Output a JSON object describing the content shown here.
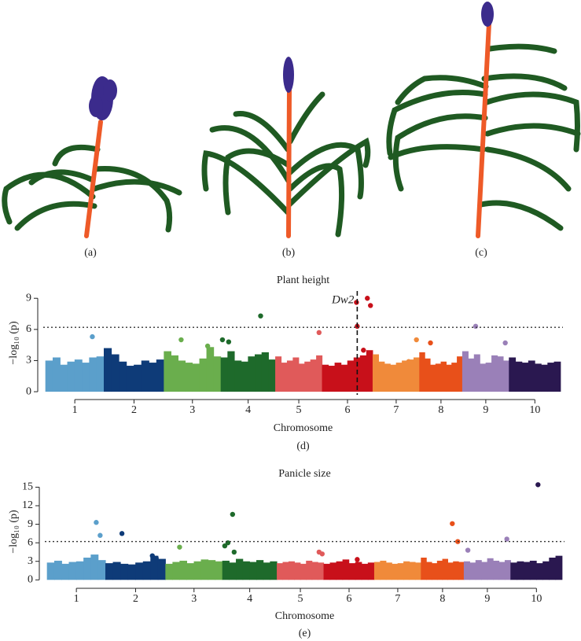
{
  "panels": [
    {
      "label": "(a)"
    },
    {
      "label": "(b)"
    },
    {
      "label": "(c)"
    }
  ],
  "chart_data": [
    {
      "type": "manhattan",
      "title": "Plant height",
      "xlabel": "Chromosome",
      "ylabel": "−log₁₀ (p)",
      "caption": "(d)",
      "xlim": [
        -3,
        664
      ],
      "ylim": [
        -0.3,
        9.7
      ],
      "yticks": [
        0,
        3,
        6,
        9
      ],
      "xticks": [
        {
          "value": 37.5,
          "label": "1"
        },
        {
          "value": 113.5,
          "label": "2"
        },
        {
          "value": 188.5,
          "label": "3"
        },
        {
          "value": 260,
          "label": "4"
        },
        {
          "value": 325,
          "label": "5"
        },
        {
          "value": 387.5,
          "label": "6"
        },
        {
          "value": 450,
          "label": "7"
        },
        {
          "value": 507.5,
          "label": "8"
        },
        {
          "value": 565,
          "label": "9"
        },
        {
          "value": 628,
          "label": "10"
        }
      ],
      "threshold": 6.2,
      "annotation": {
        "text": "Dw2",
        "x": 400
      },
      "series": [
        {
          "color": "#5b9fcb",
          "x": [
            4.7,
            14.1,
            23.4,
            32.8,
            42.2,
            51.6,
            60.9,
            70.3
          ],
          "values": [
            3.0,
            3.3,
            2.6,
            2.9,
            3.1,
            2.8,
            3.3,
            3.4
          ],
          "outlier_x": [
            60
          ],
          "outliers": [
            5.3
          ]
        },
        {
          "color": "#0e3b78",
          "x": [
            79.8,
            89.4,
            99.1,
            108.7,
            118.3,
            128.0,
            137.6,
            147.2
          ],
          "values": [
            4.2,
            3.6,
            2.9,
            2.5,
            2.6,
            3.0,
            2.8,
            3.1
          ],
          "outlier_x": [],
          "outliers": []
        },
        {
          "color": "#6aae4d",
          "x": [
            156.6,
            165.7,
            174.8,
            183.9,
            193.1,
            202.2,
            211.3,
            220.4
          ],
          "values": [
            3.9,
            3.5,
            3.0,
            2.8,
            2.7,
            3.2,
            4.3,
            3.4
          ],
          "outlier_x": [
            174,
            208
          ],
          "outliers": [
            5.0,
            4.4
          ]
        },
        {
          "color": "#1e6a2b",
          "x": [
            229.4,
            238.1,
            246.9,
            255.6,
            264.4,
            273.1,
            281.9,
            290.6
          ],
          "values": [
            3.3,
            3.9,
            3.0,
            2.9,
            3.4,
            3.6,
            3.8,
            3.1
          ],
          "outlier_x": [
            227,
            235,
            276
          ],
          "outliers": [
            5.0,
            4.8,
            7.3
          ]
        },
        {
          "color": "#e05a5a",
          "x": [
            298.8,
            306.3,
            313.8,
            321.3,
            328.8,
            336.3,
            343.8,
            351.3
          ],
          "values": [
            3.4,
            2.8,
            3.0,
            3.3,
            2.7,
            2.9,
            3.1,
            3.5
          ],
          "outlier_x": [
            351
          ],
          "outliers": [
            5.7
          ]
        },
        {
          "color": "#c8101a",
          "x": [
            359.1,
            367.2,
            375.3,
            383.4,
            391.6,
            399.7,
            407.8,
            415.9
          ],
          "values": [
            2.6,
            2.5,
            2.8,
            2.6,
            3.0,
            3.3,
            3.5,
            4.0
          ],
          "outlier_x": [
            399,
            400,
            413,
            417,
            408
          ],
          "outliers": [
            8.6,
            6.3,
            9.0,
            8.3,
            4.0
          ]
        },
        {
          "color": "#f08a3a",
          "x": [
            423.8,
            431.3,
            438.8,
            446.3,
            453.8,
            461.3,
            468.8,
            476.3
          ],
          "values": [
            3.6,
            2.9,
            2.7,
            2.6,
            2.8,
            3.0,
            3.1,
            3.3
          ],
          "outlier_x": [
            466,
            476
          ],
          "outliers": [
            2.9,
            5.0
          ]
        },
        {
          "color": "#e8501a",
          "x": [
            483.4,
            490.3,
            497.2,
            504.1,
            510.9,
            517.8,
            524.7,
            531.6
          ],
          "values": [
            3.8,
            3.2,
            2.6,
            2.7,
            2.9,
            2.6,
            2.8,
            3.4
          ],
          "outlier_x": [
            494
          ],
          "outliers": [
            4.7
          ]
        },
        {
          "color": "#9a80b8",
          "x": [
            538.8,
            546.3,
            553.8,
            561.3,
            568.8,
            576.3,
            583.8,
            591.3
          ],
          "values": [
            3.9,
            3.2,
            3.6,
            2.7,
            2.8,
            3.5,
            3.4,
            3.0
          ],
          "outlier_x": [
            552,
            590
          ],
          "outliers": [
            6.3,
            4.7
          ]
        },
        {
          "color": "#2a1850",
          "x": [
            599.1,
            607.4,
            615.6,
            623.9,
            632.1,
            640.4,
            648.6,
            656.9
          ],
          "values": [
            3.3,
            2.9,
            2.8,
            3.0,
            2.7,
            2.6,
            2.8,
            2.9
          ],
          "outlier_x": [],
          "outliers": []
        }
      ]
    },
    {
      "type": "manhattan",
      "title": "Panicle size",
      "xlabel": "Chromosome",
      "ylabel": "−log₁₀ (p)",
      "caption": "(e)",
      "xlim": [
        -3,
        664
      ],
      "ylim": [
        -0.6,
        16.2
      ],
      "yticks": [
        0,
        3,
        6,
        9,
        12,
        15
      ],
      "xticks": [
        {
          "value": 37.5,
          "label": "1"
        },
        {
          "value": 113.5,
          "label": "2"
        },
        {
          "value": 188.5,
          "label": "3"
        },
        {
          "value": 260,
          "label": "4"
        },
        {
          "value": 325,
          "label": "5"
        },
        {
          "value": 387.5,
          "label": "6"
        },
        {
          "value": 450,
          "label": "7"
        },
        {
          "value": 507.5,
          "label": "8"
        },
        {
          "value": 565,
          "label": "9"
        },
        {
          "value": 628,
          "label": "10"
        }
      ],
      "threshold": 6.2,
      "series": [
        {
          "color": "#5b9fcb",
          "x": [
            4.7,
            14.1,
            23.4,
            32.8,
            42.2,
            51.6,
            60.9,
            70.3
          ],
          "values": [
            2.8,
            3.1,
            2.6,
            2.9,
            3.0,
            3.6,
            4.1,
            3.2
          ],
          "outlier_x": [
            63,
            68
          ],
          "outliers": [
            9.3,
            7.2
          ]
        },
        {
          "color": "#0e3b78",
          "x": [
            79.8,
            89.4,
            99.1,
            108.7,
            118.3,
            128.0,
            137.6,
            147.2
          ],
          "values": [
            2.7,
            2.9,
            2.6,
            2.5,
            2.8,
            3.0,
            3.9,
            3.4
          ],
          "outlier_x": [
            96,
            135,
            140
          ],
          "outliers": [
            7.5,
            3.9,
            3.5
          ]
        },
        {
          "color": "#6aae4d",
          "x": [
            156.6,
            165.7,
            174.8,
            183.9,
            193.1,
            202.2,
            211.3,
            220.4
          ],
          "values": [
            2.6,
            2.9,
            3.1,
            2.7,
            3.0,
            3.3,
            3.2,
            3.0
          ],
          "outlier_x": [
            170
          ],
          "outliers": [
            5.3
          ]
        },
        {
          "color": "#1e6a2b",
          "x": [
            229.4,
            238.1,
            246.9,
            255.6,
            264.4,
            273.1,
            281.9,
            290.6
          ],
          "values": [
            3.1,
            2.8,
            3.4,
            3.0,
            2.9,
            3.2,
            2.8,
            3.0
          ],
          "outlier_x": [
            228,
            232,
            238,
            240
          ],
          "outliers": [
            5.5,
            6.0,
            10.6,
            4.5
          ]
        },
        {
          "color": "#e05a5a",
          "x": [
            298.8,
            306.3,
            313.8,
            321.3,
            328.8,
            336.3,
            343.8,
            351.3
          ],
          "values": [
            2.7,
            2.9,
            3.0,
            2.8,
            2.6,
            3.1,
            2.9,
            2.8
          ],
          "outlier_x": [
            349,
            353
          ],
          "outliers": [
            4.5,
            4.2
          ]
        },
        {
          "color": "#c8101a",
          "x": [
            359.1,
            367.2,
            375.3,
            383.4,
            391.6,
            399.7,
            407.8,
            415.9
          ],
          "values": [
            2.6,
            2.8,
            3.0,
            3.3,
            2.7,
            2.9,
            2.6,
            2.8
          ],
          "outlier_x": [
            398
          ],
          "outliers": [
            3.3
          ]
        },
        {
          "color": "#f08a3a",
          "x": [
            423.8,
            431.3,
            438.8,
            446.3,
            453.8,
            461.3,
            468.8,
            476.3
          ],
          "values": [
            2.9,
            3.1,
            2.8,
            2.6,
            2.7,
            3.0,
            2.9,
            2.8
          ],
          "outlier_x": [],
          "outliers": []
        },
        {
          "color": "#e8501a",
          "x": [
            483.4,
            490.3,
            497.2,
            504.1,
            510.9,
            517.8,
            524.7,
            531.6
          ],
          "values": [
            3.6,
            2.9,
            2.7,
            3.1,
            3.4,
            2.8,
            3.0,
            2.9
          ],
          "outlier_x": [
            520,
            527
          ],
          "outliers": [
            9.1,
            6.2
          ]
        },
        {
          "color": "#9a80b8",
          "x": [
            538.8,
            546.3,
            553.8,
            561.3,
            568.8,
            576.3,
            583.8,
            591.3
          ],
          "values": [
            3.0,
            2.8,
            3.2,
            2.9,
            3.5,
            3.1,
            2.9,
            3.2
          ],
          "outlier_x": [
            540,
            590
          ],
          "outliers": [
            4.8,
            6.6
          ]
        },
        {
          "color": "#2a1850",
          "x": [
            599.1,
            607.4,
            615.6,
            623.9,
            632.1,
            640.4,
            648.6,
            656.9
          ],
          "values": [
            2.8,
            3.0,
            2.9,
            3.1,
            2.7,
            3.0,
            3.6,
            3.9
          ],
          "outlier_x": [
            630
          ],
          "outliers": [
            15.4
          ]
        }
      ]
    }
  ]
}
